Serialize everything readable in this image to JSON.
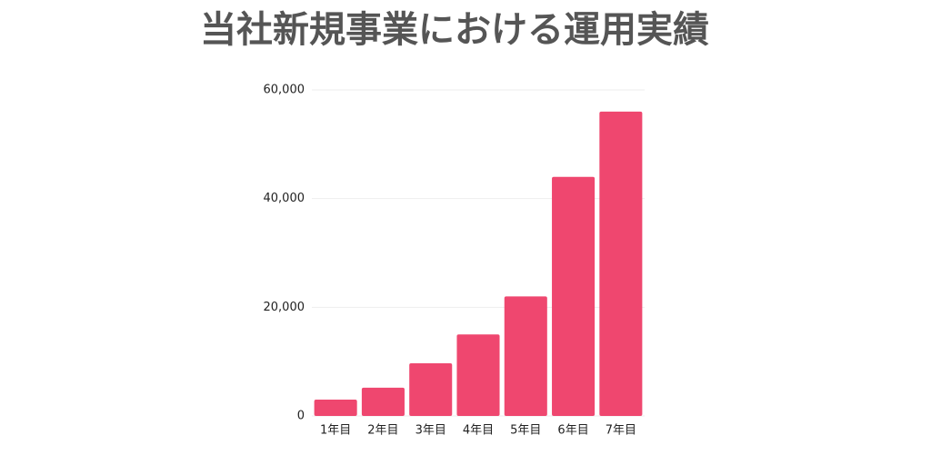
{
  "chart_data": {
    "type": "bar",
    "title": "当社新規事業における運用実績",
    "categories": [
      "1年目",
      "2年目",
      "3年目",
      "4年目",
      "5年目",
      "6年目",
      "7年目"
    ],
    "values": [
      3000,
      5200,
      9700,
      15000,
      22000,
      44000,
      56000
    ],
    "color": "#ef476f",
    "ylim": [
      0,
      60000
    ],
    "yticks": [
      0,
      {
        "value": 20000,
        "label": "20,000"
      },
      {
        "value": 40000,
        "label": "40,000"
      },
      {
        "value": 60000,
        "label": "60,000"
      }
    ],
    "grid": true
  }
}
